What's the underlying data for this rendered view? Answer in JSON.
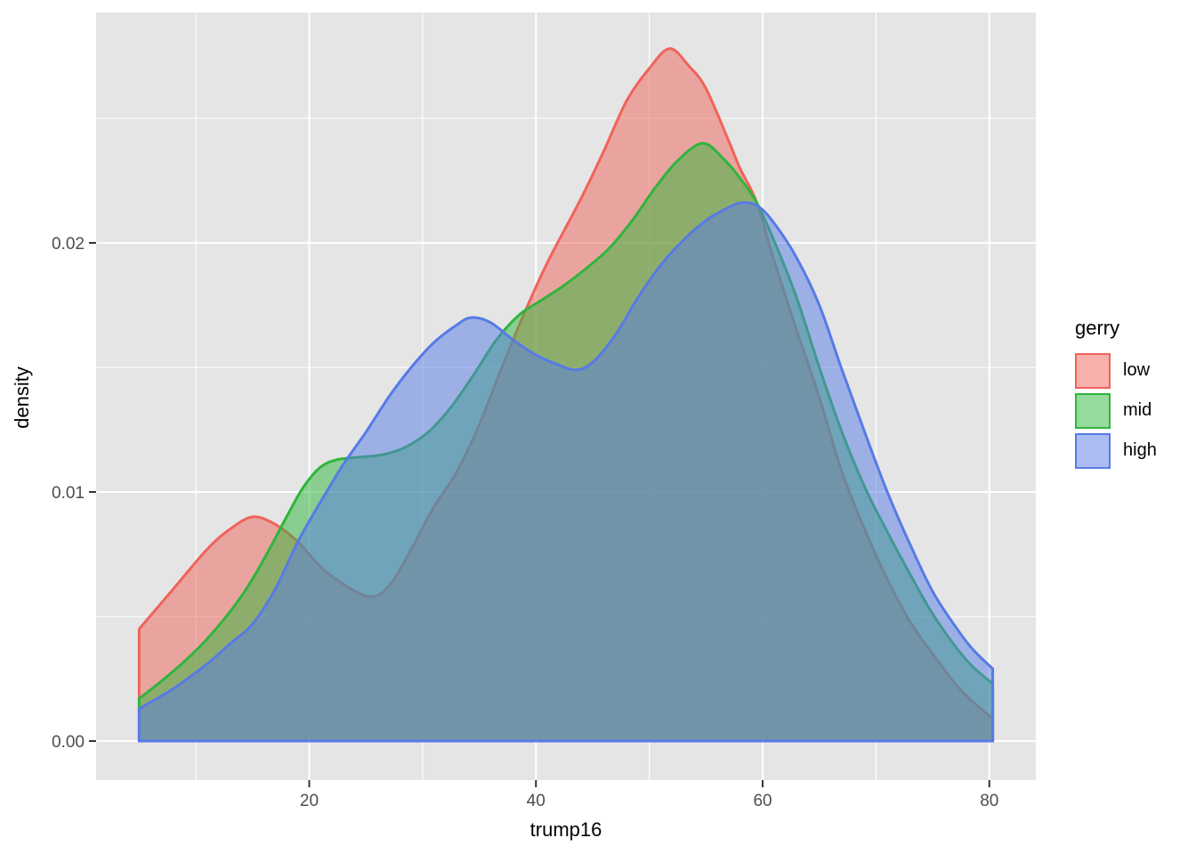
{
  "figure": {
    "panel_bg": "#E5E5E5",
    "grid_color": "#FFFFFF",
    "tick_mark_color": "#333333",
    "tick_label_color": "#4D4D4D",
    "fill_alpha": 0.5
  },
  "chart_data": {
    "type": "area",
    "title": "",
    "xlabel": "trump16",
    "ylabel": "density",
    "xlim": [
      1.2,
      84.1
    ],
    "ylim": [
      -0.00157,
      0.02925
    ],
    "grid": true,
    "x_ticks": [
      {
        "v": 20,
        "label": "20"
      },
      {
        "v": 40,
        "label": "40"
      },
      {
        "v": 60,
        "label": "60"
      },
      {
        "v": 80,
        "label": "80"
      }
    ],
    "x_minor": [
      10,
      30,
      50,
      70
    ],
    "y_ticks": [
      {
        "v": 0.0,
        "label": "0.00"
      },
      {
        "v": 0.01,
        "label": "0.01"
      },
      {
        "v": 0.02,
        "label": "0.02"
      }
    ],
    "y_minor": [
      0.005,
      0.015,
      0.025
    ],
    "legend": {
      "title": "gerry",
      "position": "right",
      "entries": [
        {
          "label": "low",
          "color": "#F0635A"
        },
        {
          "label": "mid",
          "color": "#2FB53C"
        },
        {
          "label": "high",
          "color": "#567BE6"
        }
      ]
    },
    "series": [
      {
        "name": "low",
        "color": "#F0635A",
        "points": [
          [
            5,
            0.0045
          ],
          [
            8,
            0.0061
          ],
          [
            11,
            0.0077
          ],
          [
            13,
            0.0085
          ],
          [
            15,
            0.009
          ],
          [
            17,
            0.0087
          ],
          [
            19,
            0.008
          ],
          [
            21,
            0.007
          ],
          [
            23,
            0.0063
          ],
          [
            25.3,
            0.0058
          ],
          [
            27,
            0.0062
          ],
          [
            29,
            0.0077
          ],
          [
            31,
            0.0094
          ],
          [
            33,
            0.0108
          ],
          [
            35,
            0.0127
          ],
          [
            37,
            0.015
          ],
          [
            39,
            0.0172
          ],
          [
            41,
            0.0192
          ],
          [
            44,
            0.0218
          ],
          [
            46,
            0.0237
          ],
          [
            48,
            0.0257
          ],
          [
            50,
            0.027
          ],
          [
            51.8,
            0.0278
          ],
          [
            53.5,
            0.0271
          ],
          [
            55,
            0.0262
          ],
          [
            57,
            0.0241
          ],
          [
            58,
            0.023
          ],
          [
            59.5,
            0.0216
          ],
          [
            61,
            0.0193
          ],
          [
            63,
            0.0165
          ],
          [
            65,
            0.0138
          ],
          [
            67,
            0.0108
          ],
          [
            69,
            0.0085
          ],
          [
            71,
            0.0065
          ],
          [
            73,
            0.0048
          ],
          [
            75,
            0.0035
          ],
          [
            77,
            0.0023
          ],
          [
            78.5,
            0.0016
          ],
          [
            80.3,
            0.0009
          ]
        ]
      },
      {
        "name": "mid",
        "color": "#2FB53C",
        "points": [
          [
            5,
            0.0017
          ],
          [
            8,
            0.0028
          ],
          [
            11,
            0.0041
          ],
          [
            14,
            0.0058
          ],
          [
            16,
            0.0073
          ],
          [
            18,
            0.009
          ],
          [
            19.5,
            0.0102
          ],
          [
            21,
            0.011
          ],
          [
            22.5,
            0.0113
          ],
          [
            24.5,
            0.0114
          ],
          [
            26.5,
            0.0115
          ],
          [
            28.5,
            0.0118
          ],
          [
            30.5,
            0.0124
          ],
          [
            32.5,
            0.0134
          ],
          [
            34.5,
            0.0147
          ],
          [
            36.5,
            0.0161
          ],
          [
            38.5,
            0.0171
          ],
          [
            40.5,
            0.0177
          ],
          [
            42.5,
            0.0183
          ],
          [
            44.5,
            0.019
          ],
          [
            46.5,
            0.0198
          ],
          [
            48.5,
            0.0209
          ],
          [
            50.5,
            0.0222
          ],
          [
            52.5,
            0.0233
          ],
          [
            54.7,
            0.024
          ],
          [
            56.5,
            0.0234
          ],
          [
            58,
            0.0226
          ],
          [
            59.5,
            0.0216
          ],
          [
            61,
            0.0201
          ],
          [
            63,
            0.0178
          ],
          [
            65,
            0.015
          ],
          [
            67,
            0.0124
          ],
          [
            69,
            0.0102
          ],
          [
            71,
            0.0084
          ],
          [
            73,
            0.0067
          ],
          [
            75,
            0.0051
          ],
          [
            77,
            0.0038
          ],
          [
            78.5,
            0.003
          ],
          [
            80.3,
            0.0023
          ]
        ]
      },
      {
        "name": "high",
        "color": "#567BE6",
        "points": [
          [
            5,
            0.0013
          ],
          [
            8,
            0.0021
          ],
          [
            11,
            0.0031
          ],
          [
            13,
            0.0039
          ],
          [
            15,
            0.0047
          ],
          [
            17,
            0.0061
          ],
          [
            19,
            0.008
          ],
          [
            21,
            0.0096
          ],
          [
            23,
            0.0111
          ],
          [
            25,
            0.0124
          ],
          [
            27,
            0.0138
          ],
          [
            29,
            0.015
          ],
          [
            31,
            0.016
          ],
          [
            33,
            0.0167
          ],
          [
            34.3,
            0.017
          ],
          [
            36,
            0.0168
          ],
          [
            38,
            0.0161
          ],
          [
            40,
            0.0155
          ],
          [
            42,
            0.0151
          ],
          [
            43.5,
            0.0149
          ],
          [
            45,
            0.0152
          ],
          [
            47,
            0.0163
          ],
          [
            49,
            0.0178
          ],
          [
            51,
            0.0191
          ],
          [
            53,
            0.0201
          ],
          [
            55,
            0.0209
          ],
          [
            56.5,
            0.0213
          ],
          [
            58,
            0.0216
          ],
          [
            59.5,
            0.0215
          ],
          [
            61,
            0.0208
          ],
          [
            63,
            0.0194
          ],
          [
            65,
            0.0175
          ],
          [
            67,
            0.0149
          ],
          [
            69,
            0.0124
          ],
          [
            71,
            0.01
          ],
          [
            73,
            0.0079
          ],
          [
            75,
            0.006
          ],
          [
            77,
            0.0046
          ],
          [
            78.5,
            0.0037
          ],
          [
            80.3,
            0.0029
          ]
        ]
      }
    ]
  }
}
